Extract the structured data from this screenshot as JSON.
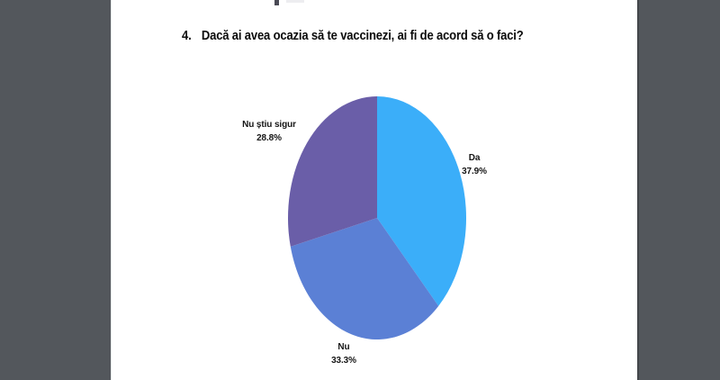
{
  "window": {
    "background_color": "#53575C",
    "page_color": "#FFFFFF"
  },
  "question": {
    "number": "4.",
    "text": "Dacă ai avea ocazia să te vaccinezi, ai fi de acord să o faci?"
  },
  "chart_data": {
    "type": "pie",
    "title": "4. Dacă ai avea ocazia să te vaccinezi, ai fi de acord să o faci?",
    "shape": "ellipse",
    "start_angle_deg": 0,
    "direction": "clockwise",
    "labels_position": "outside",
    "legend": "none",
    "slices": [
      {
        "label": "Da",
        "value": 37.9,
        "percent_label": "37.9%",
        "color": "#3BAEF9"
      },
      {
        "label": "Nu",
        "value": 33.3,
        "percent_label": "33.3%",
        "color": "#5B80D5"
      },
      {
        "label": "Nu știu sigur",
        "value": 28.8,
        "percent_label": "28.8%",
        "color": "#6A5EA8"
      }
    ]
  }
}
